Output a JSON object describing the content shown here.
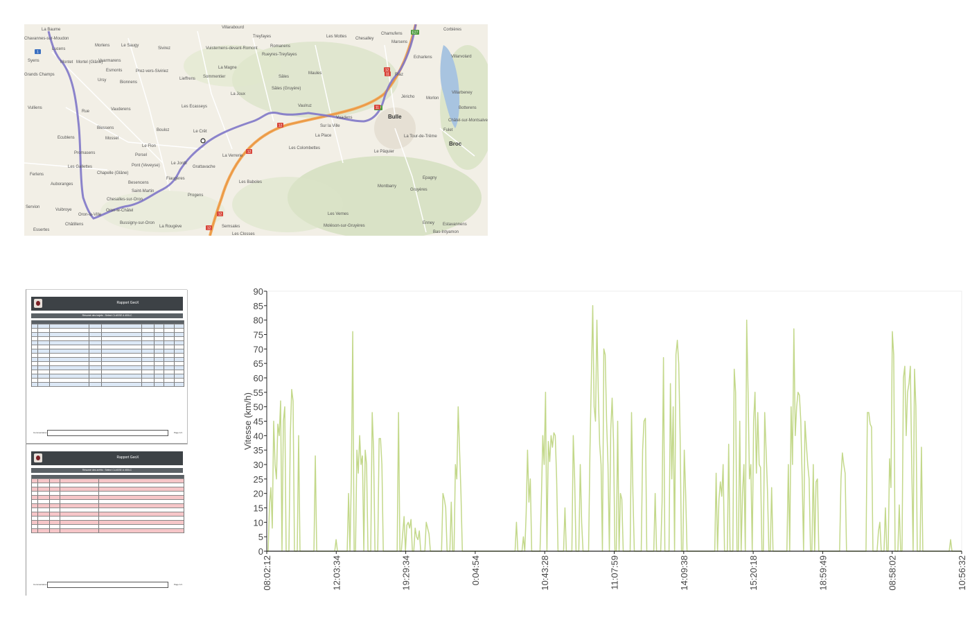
{
  "map": {
    "labels": [
      {
        "text": "La Baume"
      },
      {
        "text": "Chavannes-sur-Moudon"
      },
      {
        "text": "Lucens"
      },
      {
        "text": "Syens"
      },
      {
        "text": "Grands Champs"
      },
      {
        "text": "Vulliens"
      },
      {
        "text": "Montet"
      },
      {
        "text": "Mortel (Glâne)"
      },
      {
        "text": "Morlens"
      },
      {
        "text": "Le Saugy"
      },
      {
        "text": "Sivirez"
      },
      {
        "text": "Villarabourd"
      },
      {
        "text": "Treyfayes"
      },
      {
        "text": "Vuisternens-devant-Romont"
      },
      {
        "text": "Romanens"
      },
      {
        "text": "Rueyres-Treyfayes"
      },
      {
        "text": "Les Mottes"
      },
      {
        "text": "Chesalley"
      },
      {
        "text": "Chamufens"
      },
      {
        "text": "Marsens"
      },
      {
        "text": "Corbières"
      },
      {
        "text": "Villarvolard"
      },
      {
        "text": "Echarlens"
      },
      {
        "text": "Vuarmarens"
      },
      {
        "text": "Esmonts"
      },
      {
        "text": "Prez-vers-Siviriez"
      },
      {
        "text": "La Magne"
      },
      {
        "text": "Ursy"
      },
      {
        "text": "Bionnens"
      },
      {
        "text": "Lieffrens"
      },
      {
        "text": "Sommentier"
      },
      {
        "text": "Sâles"
      },
      {
        "text": "Maules"
      },
      {
        "text": "Riaz"
      },
      {
        "text": "Villarbeney"
      },
      {
        "text": "Sâles (Gruyère)"
      },
      {
        "text": "La Joux"
      },
      {
        "text": "Jéricho"
      },
      {
        "text": "Morlon"
      },
      {
        "text": "Les Ecasseys"
      },
      {
        "text": "Vauderens"
      },
      {
        "text": "Rue"
      },
      {
        "text": "Vaulruz"
      },
      {
        "text": "Botterens"
      },
      {
        "text": "Bulle"
      },
      {
        "text": "Châtel-sur-Montsalvens"
      },
      {
        "text": "Blessens"
      },
      {
        "text": "Bouloz"
      },
      {
        "text": "Le Crêt"
      },
      {
        "text": "Sur la Ville"
      },
      {
        "text": "Vuadens"
      },
      {
        "text": "Fulet"
      },
      {
        "text": "Broc"
      },
      {
        "text": "Ecublens"
      },
      {
        "text": "Mossel"
      },
      {
        "text": "La Place"
      },
      {
        "text": "La Tour-de-Trême"
      },
      {
        "text": "Les Colombettes"
      },
      {
        "text": "Promasens"
      },
      {
        "text": "Le Flon"
      },
      {
        "text": "La Verrerie"
      },
      {
        "text": "Le Pâquier"
      },
      {
        "text": "Porsel"
      },
      {
        "text": "Les Gallettes"
      },
      {
        "text": "Le Jordil"
      },
      {
        "text": "Pont (Veveyse)"
      },
      {
        "text": "Grattavache"
      },
      {
        "text": "Ferlens"
      },
      {
        "text": "Chapelle (Glâne)"
      },
      {
        "text": "Epagny"
      },
      {
        "text": "Besencens"
      },
      {
        "text": "Fiaugères"
      },
      {
        "text": "Les Baboles"
      },
      {
        "text": "Montbarry"
      },
      {
        "text": "Gruyères"
      },
      {
        "text": "Auboranges"
      },
      {
        "text": "Saint-Martin"
      },
      {
        "text": "Progens"
      },
      {
        "text": "Chesalles-sur-Oron"
      },
      {
        "text": "Servion"
      },
      {
        "text": "Vuibroye"
      },
      {
        "text": "Oron-le-Châtel"
      },
      {
        "text": "Oron-la-Ville"
      },
      {
        "text": "Les Vernes"
      },
      {
        "text": "Essertes"
      },
      {
        "text": "Châtillens"
      },
      {
        "text": "Bussigny-sur-Oron"
      },
      {
        "text": "La Rougève"
      },
      {
        "text": "Semsales"
      },
      {
        "text": "Moléson-sur-Gruyères"
      },
      {
        "text": "Enney"
      },
      {
        "text": "Estavannens"
      },
      {
        "text": "Les Closses"
      },
      {
        "text": "Bas-Intyamon"
      }
    ],
    "road_badges": [
      "1",
      "E27",
      "12",
      "E27",
      "12",
      "11",
      "11",
      "12",
      "12",
      "12"
    ]
  },
  "reports": [
    {
      "title": "Rapport GeoX",
      "subtitle": "Résumé des trajets : Select CLASSE A 400LC",
      "comments_label": "Commentaires",
      "page_label": "Page 1/1"
    },
    {
      "title": "Rapport GeoX",
      "subtitle": "Résumé des arrêts : Select CLASSE A 400LC",
      "comments_label": "Commentaires",
      "page_label": "Page 1/1"
    }
  ],
  "chart_data": {
    "type": "line",
    "title": "",
    "ylabel": "Vitesse (km/h)",
    "xlabel": "",
    "ylim": [
      0,
      90
    ],
    "yticks": [
      0,
      5,
      10,
      15,
      20,
      25,
      30,
      35,
      40,
      45,
      50,
      55,
      60,
      65,
      70,
      75,
      80,
      85,
      90
    ],
    "xtick_labels": [
      "08:02:12",
      "12:03:34",
      "19:29:34",
      "0:04:54",
      "10:43:28",
      "11:07:59",
      "14:09:38",
      "15:20:18",
      "18:59:49",
      "08:58:02",
      "10:56:32"
    ],
    "grid": false,
    "series": [
      {
        "color": "#c3d88a",
        "values": [
          0,
          0,
          16,
          22,
          8,
          45,
          30,
          25,
          44,
          40,
          52,
          0,
          45,
          50,
          0,
          0,
          0,
          40,
          56,
          52,
          0,
          0,
          0,
          40,
          0,
          0,
          0,
          0,
          0,
          0,
          0,
          0,
          0,
          0,
          0,
          33,
          0,
          0,
          0,
          0,
          0,
          0,
          0,
          0,
          0,
          0,
          0,
          0,
          0,
          0,
          4,
          0,
          0,
          0,
          0,
          0,
          0,
          0,
          0,
          20,
          0,
          25,
          76,
          0,
          0,
          35,
          27,
          40,
          30,
          33,
          0,
          35,
          30,
          0,
          0,
          0,
          48,
          35,
          0,
          0,
          0,
          39,
          39,
          30,
          0,
          0,
          0,
          0,
          0,
          0,
          0,
          0,
          0,
          0,
          0,
          48,
          0,
          0,
          6,
          12,
          0,
          9,
          10,
          8,
          11,
          0,
          0,
          8,
          5,
          4,
          7,
          0,
          0,
          0,
          0,
          10,
          8,
          6,
          0,
          0,
          0,
          0,
          0,
          0,
          0,
          0,
          0,
          20,
          18,
          15,
          0,
          0,
          0,
          17,
          0,
          0,
          30,
          25,
          50,
          35,
          20,
          0,
          0,
          0,
          0,
          0,
          0,
          0,
          0,
          0,
          0,
          0,
          0,
          0,
          0,
          0,
          0,
          0,
          0,
          0,
          0,
          0,
          0,
          0,
          0,
          0,
          0,
          0,
          0,
          0,
          0,
          0,
          0,
          0,
          0,
          0,
          0,
          0,
          0,
          0,
          10,
          0,
          0,
          0,
          0,
          5,
          0,
          13,
          35,
          17,
          25,
          0,
          0,
          0,
          0,
          0,
          0,
          0,
          18,
          40,
          30,
          55,
          0,
          38,
          31,
          40,
          36,
          41,
          40,
          25,
          0,
          0,
          0,
          0,
          0,
          15,
          0,
          0,
          0,
          0,
          0,
          40,
          25,
          0,
          0,
          0,
          30,
          10,
          0,
          0,
          0,
          0,
          0,
          35,
          60,
          85,
          50,
          45,
          80,
          55,
          37,
          30,
          0,
          70,
          68,
          45,
          30,
          0,
          42,
          53,
          38,
          0,
          0,
          45,
          0,
          20,
          18,
          0,
          0,
          0,
          0,
          0,
          0,
          48,
          20,
          0,
          0,
          0,
          0,
          0,
          0,
          35,
          45,
          46,
          0,
          0,
          0,
          0,
          0,
          0,
          20,
          0,
          0,
          0,
          0,
          17,
          67,
          0,
          0,
          0,
          0,
          58,
          25,
          50,
          0,
          68,
          73,
          65,
          40,
          0,
          0,
          35,
          20,
          0,
          0,
          0,
          0,
          0,
          0,
          0,
          0,
          0,
          0,
          0,
          0,
          0,
          0,
          0,
          0,
          0,
          0,
          0,
          0,
          0,
          27,
          0,
          18,
          24,
          19,
          30,
          0,
          0,
          0,
          37,
          0,
          0,
          0,
          63,
          55,
          0,
          0,
          45,
          0,
          20,
          30,
          0,
          80,
          55,
          25,
          30,
          0,
          45,
          55,
          27,
          48,
          30,
          29,
          0,
          0,
          48,
          35,
          21,
          0,
          0,
          22,
          0,
          0,
          0,
          0,
          0,
          0,
          0,
          0,
          0,
          0,
          0,
          30,
          0,
          50,
          30,
          77,
          40,
          50,
          55,
          54,
          45,
          25,
          0,
          45,
          37,
          30,
          25,
          0,
          0,
          30,
          0,
          24,
          25,
          0,
          0,
          0,
          0,
          0,
          0,
          0,
          0,
          0,
          0,
          0,
          0,
          0,
          0,
          0,
          0,
          25,
          34,
          30,
          27,
          0,
          0,
          0,
          0,
          0,
          0,
          0,
          0,
          0,
          0,
          0,
          0,
          0,
          0,
          0,
          48,
          48,
          44,
          43,
          0,
          0,
          0,
          0,
          7,
          10,
          0,
          0,
          0,
          15,
          0,
          0,
          32,
          22,
          76,
          68,
          0,
          0,
          0,
          16,
          0,
          0,
          60,
          64,
          40,
          55,
          58,
          64,
          30,
          0,
          63,
          50,
          0,
          0,
          0,
          36,
          0,
          0,
          0,
          0,
          0,
          0,
          0,
          0,
          0,
          0,
          0,
          0,
          0,
          0,
          0,
          0,
          0,
          0,
          0,
          0,
          4,
          0,
          0,
          0,
          0,
          0,
          0,
          0,
          0
        ]
      }
    ]
  }
}
